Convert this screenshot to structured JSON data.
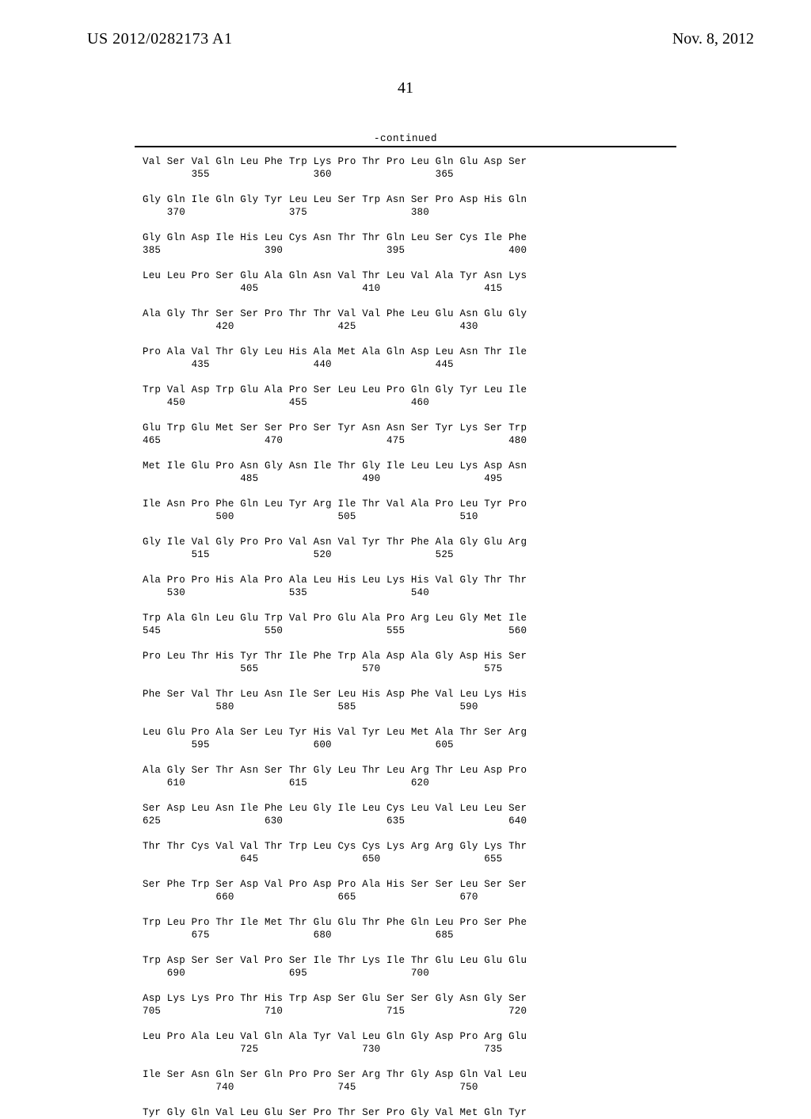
{
  "header": {
    "publication_number": "US 2012/0282173 A1",
    "publication_date": "Nov. 8, 2012",
    "page_number": "41",
    "continued_label": "-continued"
  },
  "sequence_text": "Val Ser Val Gln Leu Phe Trp Lys Pro Thr Pro Leu Gln Glu Asp Ser\n        355                 360                 365\n\nGly Gln Ile Gln Gly Tyr Leu Leu Ser Trp Asn Ser Pro Asp His Gln\n    370                 375                 380\n\nGly Gln Asp Ile His Leu Cys Asn Thr Thr Gln Leu Ser Cys Ile Phe\n385                 390                 395                 400\n\nLeu Leu Pro Ser Glu Ala Gln Asn Val Thr Leu Val Ala Tyr Asn Lys\n                405                 410                 415\n\nAla Gly Thr Ser Ser Pro Thr Thr Val Val Phe Leu Glu Asn Glu Gly\n            420                 425                 430\n\nPro Ala Val Thr Gly Leu His Ala Met Ala Gln Asp Leu Asn Thr Ile\n        435                 440                 445\n\nTrp Val Asp Trp Glu Ala Pro Ser Leu Leu Pro Gln Gly Tyr Leu Ile\n    450                 455                 460\n\nGlu Trp Glu Met Ser Ser Pro Ser Tyr Asn Asn Ser Tyr Lys Ser Trp\n465                 470                 475                 480\n\nMet Ile Glu Pro Asn Gly Asn Ile Thr Gly Ile Leu Leu Lys Asp Asn\n                485                 490                 495\n\nIle Asn Pro Phe Gln Leu Tyr Arg Ile Thr Val Ala Pro Leu Tyr Pro\n            500                 505                 510\n\nGly Ile Val Gly Pro Pro Val Asn Val Tyr Thr Phe Ala Gly Glu Arg\n        515                 520                 525\n\nAla Pro Pro His Ala Pro Ala Leu His Leu Lys His Val Gly Thr Thr\n    530                 535                 540\n\nTrp Ala Gln Leu Glu Trp Val Pro Glu Ala Pro Arg Leu Gly Met Ile\n545                 550                 555                 560\n\nPro Leu Thr His Tyr Thr Ile Phe Trp Ala Asp Ala Gly Asp His Ser\n                565                 570                 575\n\nPhe Ser Val Thr Leu Asn Ile Ser Leu His Asp Phe Val Leu Lys His\n            580                 585                 590\n\nLeu Glu Pro Ala Ser Leu Tyr His Val Tyr Leu Met Ala Thr Ser Arg\n        595                 600                 605\n\nAla Gly Ser Thr Asn Ser Thr Gly Leu Thr Leu Arg Thr Leu Asp Pro\n    610                 615                 620\n\nSer Asp Leu Asn Ile Phe Leu Gly Ile Leu Cys Leu Val Leu Leu Ser\n625                 630                 635                 640\n\nThr Thr Cys Val Val Thr Trp Leu Cys Cys Lys Arg Arg Gly Lys Thr\n                645                 650                 655\n\nSer Phe Trp Ser Asp Val Pro Asp Pro Ala His Ser Ser Leu Ser Ser\n            660                 665                 670\n\nTrp Leu Pro Thr Ile Met Thr Glu Glu Thr Phe Gln Leu Pro Ser Phe\n        675                 680                 685\n\nTrp Asp Ser Ser Val Pro Ser Ile Thr Lys Ile Thr Glu Leu Glu Glu\n    690                 695                 700\n\nAsp Lys Lys Pro Thr His Trp Asp Ser Glu Ser Ser Gly Asn Gly Ser\n705                 710                 715                 720\n\nLeu Pro Ala Leu Val Gln Ala Tyr Val Leu Gln Gly Asp Pro Arg Glu\n                725                 730                 735\n\nIle Ser Asn Gln Ser Gln Pro Pro Ser Arg Thr Gly Asp Gln Val Leu\n            740                 745                 750\n\nTyr Gly Gln Val Leu Glu Ser Pro Thr Ser Pro Gly Val Met Gln Tyr"
}
